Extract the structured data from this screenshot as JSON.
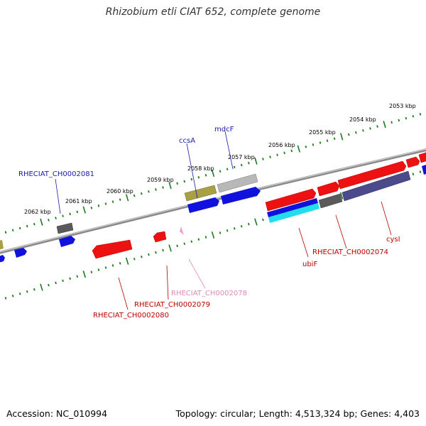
{
  "title": "Rhizobium etli CIAT 652, complete genome",
  "footer": {
    "accession": "Accession: NC_010994",
    "summary": "Topology: circular; Length: 4,513,324 bp; Genes: 4,403"
  },
  "colors": {
    "backbone": "#8a8a8a",
    "tick": "#1e7a1e",
    "red_gene": "#ee1111",
    "blue_gene": "#1111dd",
    "gray_gene": "#5a5a5a",
    "light_gray_gene": "#b8b8b8",
    "olive_gene": "#a9a046",
    "slate_gene": "#4b4b8c",
    "cyan_gene": "#22ddee",
    "pink_gene": "#f0a0c8",
    "label_blue": "#1a1aaa",
    "label_red": "#bb0000",
    "label_pink": "#e08ab8"
  },
  "kbp_labels": [
    "2053 kbp",
    "2054 kbp",
    "2055 kbp",
    "2056 kbp",
    "2057 kbp",
    "2058 kbp",
    "2059 kbp",
    "2060 kbp",
    "2061 kbp",
    "2062 kbp"
  ],
  "gene_labels": {
    "mdcF": "mdcF",
    "ccsA": "ccsA",
    "rheciat_2081": "RHECIAT_CH0002081",
    "ubiF": "ubiF",
    "rheciat_2074": "RHECIAT_CH0002074",
    "cysI": "cysI",
    "rheciat_2078": "RHECIAT_CH0002078",
    "rheciat_2079": "RHECIAT_CH0002079",
    "rheciat_2080": "RHECIAT_CH0002080"
  }
}
